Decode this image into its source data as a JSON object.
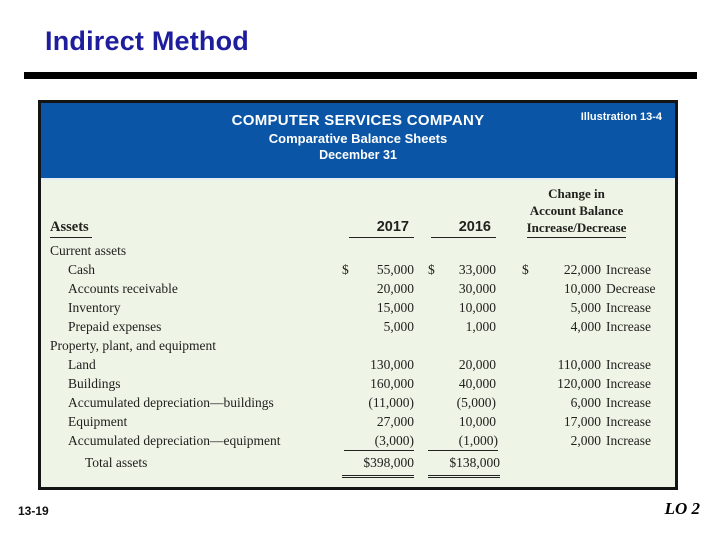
{
  "slide": {
    "title": "Indirect Method",
    "page_number": "13-19",
    "lo_label": "LO 2"
  },
  "illustration": {
    "tag": "Illustration 13-4",
    "company": "COMPUTER SERVICES COMPANY",
    "statement": "Comparative Balance Sheets",
    "date": "December 31"
  },
  "table": {
    "assets_header": "Assets",
    "col_2017": "2017",
    "col_2016": "2016",
    "change_header": {
      "line1": "Change in",
      "line2": "Account Balance",
      "line3": "Increase/Decrease"
    },
    "rows": [
      {
        "type": "section",
        "label": "Current assets"
      },
      {
        "type": "item",
        "label": "Cash",
        "cur17": "$",
        "v17": "55,000",
        "cur16": "$",
        "v16": "33,000",
        "curChg": "$",
        "vChg": "22,000",
        "word": "Increase"
      },
      {
        "type": "item",
        "label": "Accounts receivable",
        "v17": "20,000",
        "v16": "30,000",
        "vChg": "10,000",
        "word": "Decrease"
      },
      {
        "type": "item",
        "label": "Inventory",
        "v17": "15,000",
        "v16": "10,000",
        "vChg": "5,000",
        "word": "Increase"
      },
      {
        "type": "item",
        "label": "Prepaid expenses",
        "v17": "5,000",
        "v16": "1,000",
        "vChg": "4,000",
        "word": "Increase"
      },
      {
        "type": "section",
        "label": "Property, plant, and equipment"
      },
      {
        "type": "item",
        "label": "Land",
        "v17": "130,000",
        "v16": "20,000",
        "vChg": "110,000",
        "word": "Increase"
      },
      {
        "type": "item",
        "label": "Buildings",
        "v17": "160,000",
        "v16": "40,000",
        "vChg": "120,000",
        "word": "Increase"
      },
      {
        "type": "item",
        "label": "Accumulated depreciation—buildings",
        "v17": "(11,000)",
        "v16": "(5,000)",
        "vChg": "6,000",
        "word": "Increase"
      },
      {
        "type": "item",
        "label": "Equipment",
        "v17": "27,000",
        "v16": "10,000",
        "vChg": "17,000",
        "word": "Increase"
      },
      {
        "type": "item",
        "label": "Accumulated depreciation—equipment",
        "v17": "(3,000)",
        "v16": "(1,000)",
        "vChg": "2,000",
        "word": "Increase"
      },
      {
        "type": "total",
        "label": "Total assets",
        "v17": "$398,000",
        "v16": "$138,000"
      }
    ]
  },
  "colors": {
    "header_blue": "#0a55a5",
    "body_mint": "#eef4e6",
    "title_navy": "#1d1d9e"
  }
}
